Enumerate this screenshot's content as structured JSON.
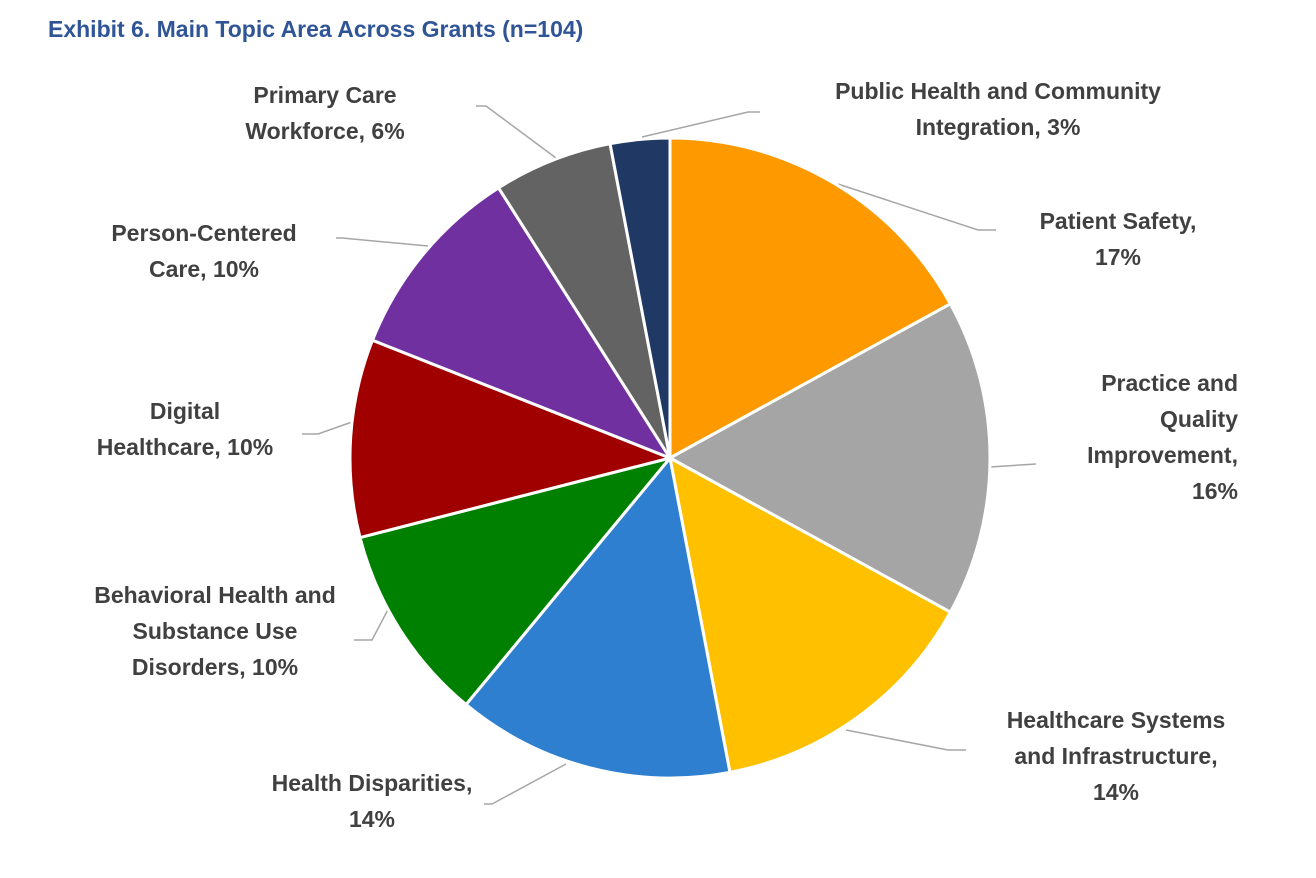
{
  "title": "Exhibit 6. Main Topic Area Across Grants (n=104)",
  "chart_data": {
    "type": "pie",
    "title": "Exhibit 6. Main Topic Area Across Grants (n=104)",
    "categories": [
      "Patient Safety",
      "Practice and Quality Improvement",
      "Healthcare Systems and Infrastructure",
      "Health Disparities",
      "Behavioral Health and Substance Use Disorders",
      "Digital Healthcare",
      "Person-Centered Care",
      "Primary Care Workforce",
      "Public Health and Community Integration"
    ],
    "values": [
      17,
      16,
      14,
      14,
      10,
      10,
      10,
      6,
      3
    ],
    "colors": [
      "#FF9900",
      "#A5A5A5",
      "#FFC000",
      "#2E7FCF",
      "#008000",
      "#A00000",
      "#7030A0",
      "#636363",
      "#203864"
    ],
    "labels": [
      [
        "Patient Safety,",
        "17%"
      ],
      [
        "Practice and",
        "Quality",
        "Improvement,",
        "16%"
      ],
      [
        "Healthcare Systems",
        "and Infrastructure,",
        "14%"
      ],
      [
        "Health Disparities,",
        "14%"
      ],
      [
        "Behavioral Health and",
        "Substance Use",
        "Disorders, 10%"
      ],
      [
        "Digital",
        "Healthcare, 10%"
      ],
      [
        "Person-Centered",
        "Care, 10%"
      ],
      [
        "Primary Care",
        "Workforce, 6%"
      ],
      [
        "Public Health and Community",
        "Integration, 3%"
      ]
    ]
  }
}
